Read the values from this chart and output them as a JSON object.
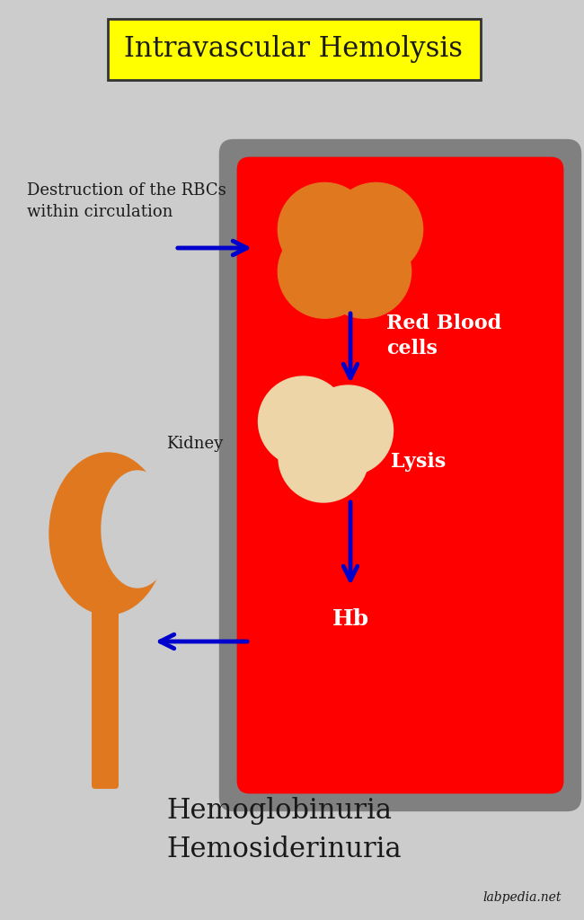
{
  "title": "Intravascular Hemolysis",
  "title_box_color": "#FFFF00",
  "bg_color": "#CCCCCC",
  "vessel_fill": "#FF0000",
  "vessel_border": "#808080",
  "rbc_orange_color": "#E07820",
  "rbc_pale_color": "#EDD5A8",
  "arrow_color": "#0000CC",
  "text_white": "#FFFFFF",
  "text_dark": "#1a1a1a",
  "kidney_color": "#E07820",
  "label_destruction": "Destruction of the RBCs\nwithin circulation",
  "label_rbc": "Red Blood\ncells",
  "label_lysis": "Lysis",
  "label_hb": "Hb",
  "label_kidney": "Kidney",
  "label_bottom": "Hemoglobinuria\nHemosiderinuria",
  "label_watermark": "labpedia.net"
}
